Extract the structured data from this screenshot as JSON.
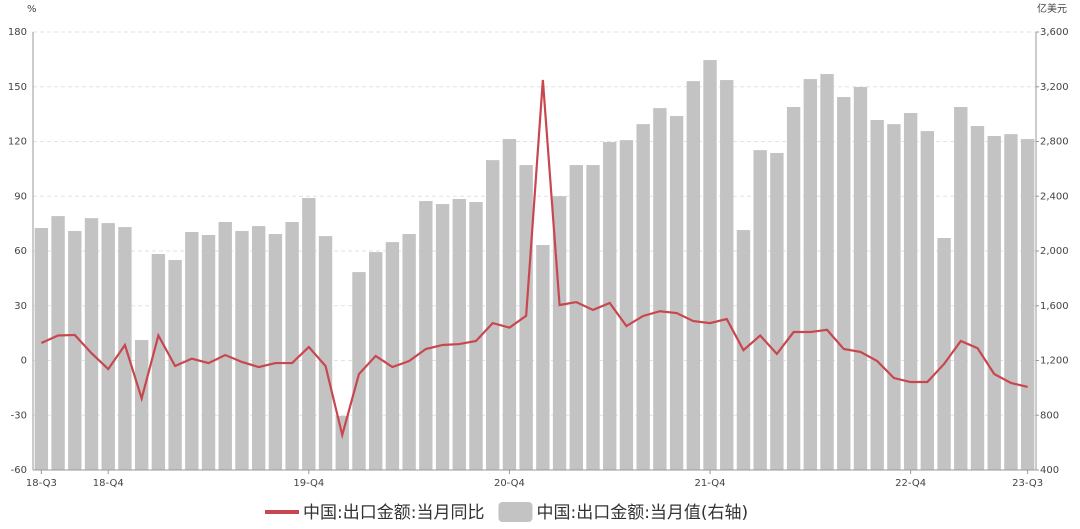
{
  "chart_data": {
    "type": "bar_line",
    "y_label": "%",
    "y2_label": "亿美元",
    "categories": [
      "18-Q3",
      null,
      null,
      null,
      "18-Q4",
      null,
      null,
      null,
      null,
      null,
      null,
      null,
      null,
      null,
      null,
      null,
      "19-Q4",
      null,
      null,
      null,
      null,
      null,
      null,
      null,
      null,
      null,
      null,
      null,
      "20-Q4",
      null,
      null,
      null,
      null,
      null,
      null,
      null,
      null,
      null,
      null,
      null,
      "21-Q4",
      null,
      null,
      null,
      null,
      null,
      null,
      null,
      null,
      null,
      null,
      null,
      "22-Q4",
      null,
      null,
      null,
      null,
      null,
      null,
      "23-Q3"
    ],
    "series": [
      {
        "name": "中国:出口金额:当月同比",
        "type": "line",
        "color": "#c8474f",
        "axis": "y",
        "values": [
          9.6,
          13.7,
          14,
          4,
          -4.7,
          8.5,
          -20.8,
          13.7,
          -3,
          1,
          -1.4,
          3,
          -0.8,
          -3.6,
          -1.4,
          -1.4,
          7.4,
          -3,
          -40.8,
          -7.4,
          2.5,
          -3.6,
          -0.3,
          6.3,
          8.5,
          9,
          10.7,
          20.5,
          18,
          24.5,
          153.7,
          30.4,
          32,
          27.7,
          31.5,
          18.9,
          24.4,
          27,
          26,
          21.6,
          20.5,
          22.7,
          5.7,
          13.7,
          3.6,
          15.6,
          15.6,
          16.8,
          6.3,
          4.7,
          -0.3,
          -9.6,
          -11.8,
          -11.8,
          -1.9,
          10.7,
          6.8,
          -7.4,
          -12.3,
          -14.5
        ]
      },
      {
        "name": "中国:出口金额:当月值(右轴)",
        "type": "bar",
        "color": "#c3c3c3",
        "axis": "y2",
        "values": [
          2168,
          2255,
          2146,
          2240,
          2204,
          2175,
          1350,
          1978,
          1934,
          2139,
          2117,
          2212,
          2146,
          2182,
          2124,
          2212,
          2387,
          2109,
          795,
          1846,
          1992,
          2065,
          2124,
          2365,
          2343,
          2380,
          2358,
          2664,
          2818,
          2628,
          2044,
          2401,
          2628,
          2628,
          2796,
          2810,
          2927,
          3044,
          2986,
          3241,
          3395,
          3249,
          2153,
          2737,
          2716,
          3052,
          3256,
          3293,
          3125,
          3198,
          2957,
          2927,
          3008,
          2876,
          2095,
          3052,
          2913,
          2840,
          2854,
          2818
        ]
      }
    ],
    "ylim": [
      -60,
      180
    ],
    "yticks": [
      -60,
      -30,
      0,
      30,
      60,
      90,
      120,
      150,
      180
    ],
    "y2lim": [
      400,
      3600
    ],
    "y2ticks": [
      400,
      800,
      {
        "value": 1200,
        "label": "1,200"
      },
      {
        "value": 1600,
        "label": "1,600"
      },
      {
        "value": 2000,
        "label": "2,000"
      },
      {
        "value": 2400,
        "label": "2,400"
      },
      {
        "value": 2800,
        "label": "2,800"
      },
      {
        "value": 3200,
        "label": "3,200"
      },
      {
        "value": 3600,
        "label": "3,600"
      }
    ],
    "grid": true
  }
}
